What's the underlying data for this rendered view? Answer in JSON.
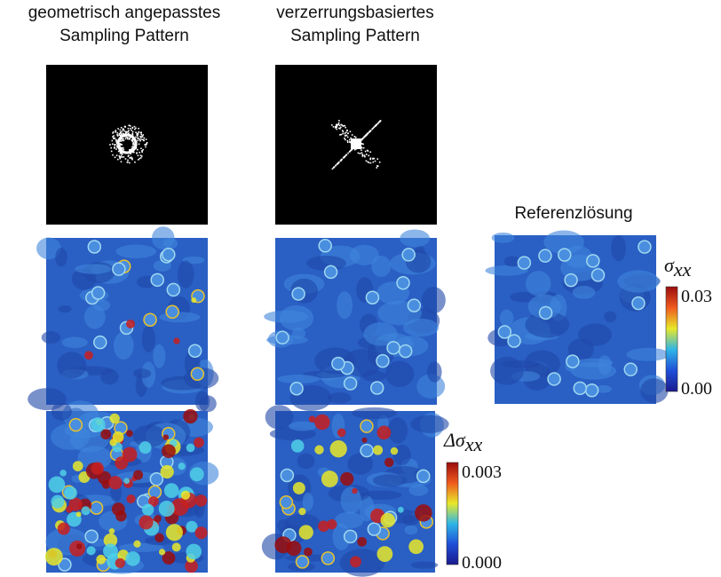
{
  "columns": [
    {
      "title_line1": "geometrisch angepasstes",
      "title_line2": "Sampling Pattern"
    },
    {
      "title_line1": "verzerrungsbasiertes",
      "title_line2": "Sampling Pattern"
    }
  ],
  "reference": {
    "title": "Referenzlösung"
  },
  "colorbar_stress": {
    "symbol": "σ",
    "subscript": "xx",
    "max_label": "0.03",
    "min_label": "0.00"
  },
  "colorbar_error": {
    "symbol": "Δσ",
    "subscript": "xx",
    "max_label": "0.003",
    "min_label": "0.000"
  }
}
